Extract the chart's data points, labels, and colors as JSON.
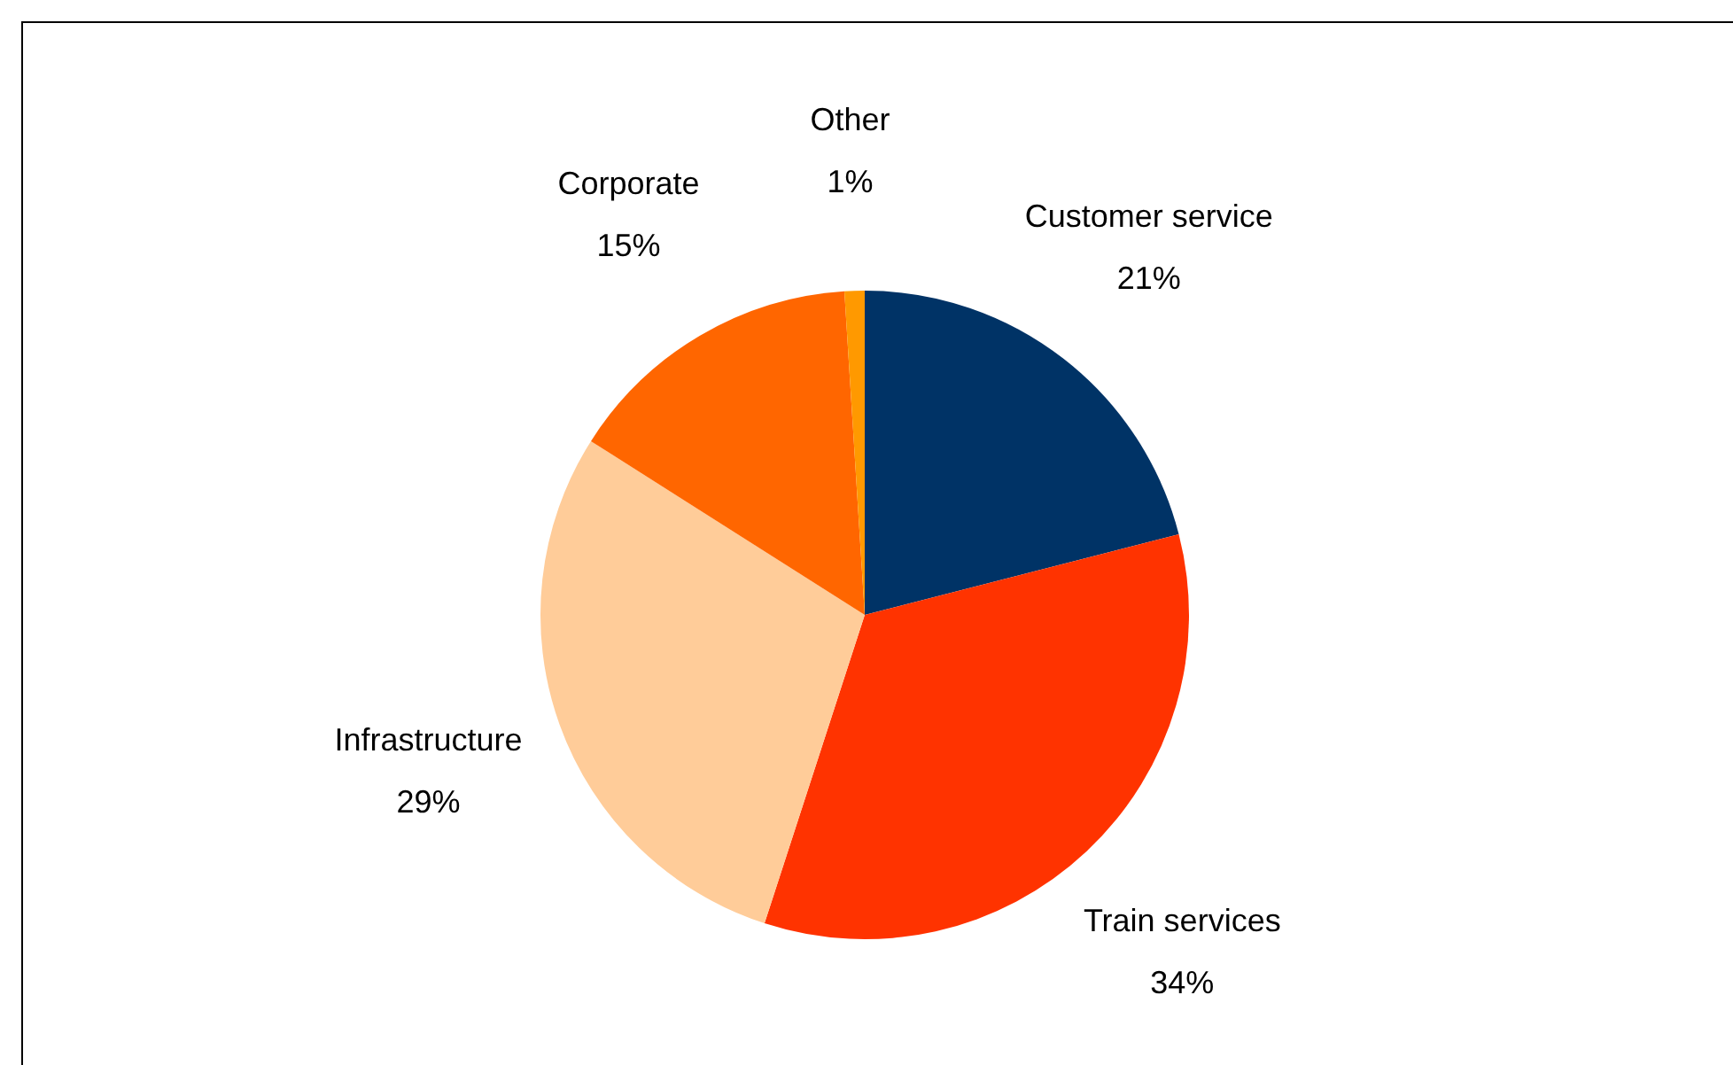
{
  "chart_data": {
    "type": "pie",
    "categories": [
      "Customer service",
      "Train services",
      "Infrastructure",
      "Corporate",
      "Other"
    ],
    "values": [
      21,
      34,
      29,
      15,
      1
    ],
    "colors": [
      "#003366",
      "#ff3300",
      "#ffcc99",
      "#ff6600",
      "#ff9900"
    ],
    "value_labels": [
      "21%",
      "34%",
      "29%",
      "15%",
      "1%"
    ],
    "legend": false
  }
}
